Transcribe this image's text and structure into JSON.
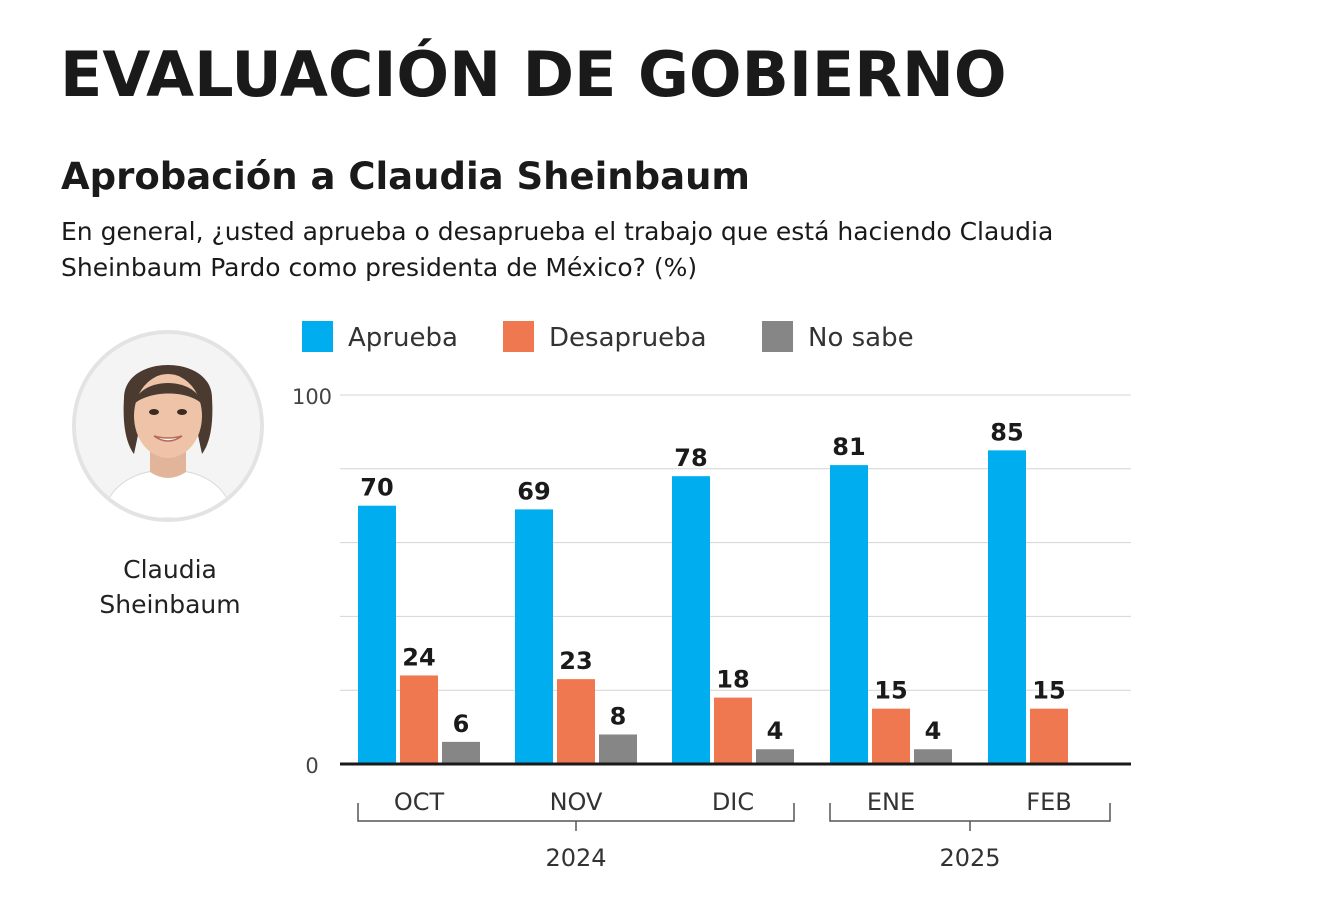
{
  "header": {
    "title": "EVALUACIÓN DE GOBIERNO",
    "subtitle": "Aprobación a Claudia Sheinbaum",
    "question": "En general, ¿usted aprueba o desaprueba el trabajo que está haciendo Claudia Sheinbaum Pardo como presidenta de México? (%)"
  },
  "portrait": {
    "caption": "Claudia Sheinbaum",
    "icon": "portrait-photo"
  },
  "chart_data": {
    "type": "bar",
    "categories": [
      "OCT",
      "NOV",
      "DIC",
      "ENE",
      "FEB"
    ],
    "series": [
      {
        "name": "Aprueba",
        "color": "#00aeef",
        "values": [
          70,
          69,
          78,
          81,
          85
        ]
      },
      {
        "name": "Desaprueba",
        "color": "#f07850",
        "values": [
          24,
          23,
          18,
          15,
          15
        ]
      },
      {
        "name": "No sabe",
        "color": "#868686",
        "values": [
          6,
          8,
          4,
          4,
          null
        ]
      }
    ],
    "year_groups": [
      {
        "label": "2024",
        "categories": [
          "OCT",
          "NOV",
          "DIC"
        ]
      },
      {
        "label": "2025",
        "categories": [
          "ENE",
          "FEB"
        ]
      }
    ],
    "ylim": [
      0,
      100
    ],
    "yticks": [
      0,
      100
    ],
    "gridlines": [
      20,
      40,
      60,
      80,
      100
    ],
    "legend": "top",
    "grid": true
  }
}
